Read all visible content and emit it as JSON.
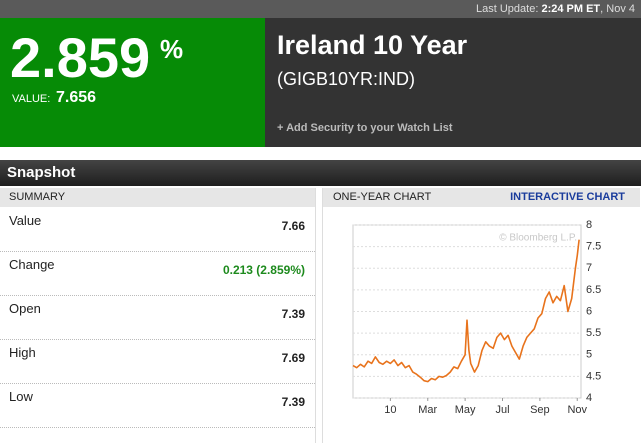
{
  "header": {
    "last_update_label": "Last Update:",
    "last_update_time": "2:24 PM ET",
    "last_update_date": ", Nov 4"
  },
  "quote": {
    "yield": "2.859",
    "yield_unit": "%",
    "value_label": "VALUE:",
    "value": "7.656"
  },
  "security": {
    "name": "Ireland 10 Year",
    "ticker": "(GIGB10YR:IND)",
    "watchlist_link": "+ Add Security to your Watch List"
  },
  "snapshot": {
    "title": "Snapshot",
    "summary": {
      "title": "SUMMARY",
      "rows": [
        [
          "Value",
          "7.66"
        ],
        [
          "Change",
          "0.213 (2.859%)"
        ],
        [
          "Open",
          "7.39"
        ],
        [
          "High",
          "7.69"
        ],
        [
          "Low",
          "7.39"
        ]
      ]
    }
  },
  "chart_data": {
    "type": "line",
    "title": "ONE-YEAR CHART",
    "link": "INTERACTIVE CHART",
    "watermark": "© Bloomberg L.P.",
    "x": [
      -1,
      -0.8,
      -0.6,
      -0.4,
      -0.2,
      0,
      0.2,
      0.4,
      0.6,
      0.8,
      1.0,
      1.2,
      1.4,
      1.6,
      1.8,
      2.0,
      2.2,
      2.4,
      2.6,
      2.8,
      3.0,
      3.2,
      3.4,
      3.6,
      3.8,
      4.0,
      4.2,
      4.4,
      4.6,
      4.8,
      5.0,
      5.1,
      5.2,
      5.3,
      5.5,
      5.7,
      5.9,
      6.1,
      6.3,
      6.5,
      6.7,
      6.9,
      7.1,
      7.3,
      7.5,
      7.7,
      7.9,
      8.1,
      8.3,
      8.5,
      8.7,
      8.9,
      9.1,
      9.3,
      9.5,
      9.7,
      9.9,
      10.1,
      10.3,
      10.5,
      10.7,
      10.9,
      11.0,
      11.1
    ],
    "series": [
      {
        "color": "#e8731c",
        "values": [
          4.75,
          4.7,
          4.78,
          4.72,
          4.85,
          4.8,
          4.95,
          4.82,
          4.78,
          4.85,
          4.8,
          4.88,
          4.75,
          4.82,
          4.7,
          4.75,
          4.6,
          4.55,
          4.48,
          4.4,
          4.38,
          4.45,
          4.42,
          4.5,
          4.48,
          4.52,
          4.6,
          4.72,
          4.68,
          4.85,
          5.0,
          5.8,
          5.1,
          4.8,
          4.6,
          4.75,
          5.1,
          5.3,
          5.2,
          5.15,
          5.4,
          5.5,
          5.35,
          5.45,
          5.2,
          5.05,
          4.9,
          5.2,
          5.4,
          5.5,
          5.6,
          5.85,
          5.95,
          6.3,
          6.45,
          6.2,
          6.35,
          6.25,
          6.6,
          6.0,
          6.3,
          7.0,
          7.3,
          7.66
        ]
      }
    ],
    "xlim": [
      -1,
      11.2
    ],
    "xticks": [
      {
        "value": 1,
        "label": "10"
      },
      {
        "value": 3,
        "label": "Mar"
      },
      {
        "value": 5,
        "label": "May"
      },
      {
        "value": 7,
        "label": "Jul"
      },
      {
        "value": 9,
        "label": "Sep"
      },
      {
        "value": 11,
        "label": "Nov"
      }
    ],
    "ylim": [
      4,
      8
    ],
    "yticks": [
      4,
      4.5,
      5,
      5.5,
      6,
      6.5,
      7,
      7.5,
      8
    ],
    "grid": true
  }
}
